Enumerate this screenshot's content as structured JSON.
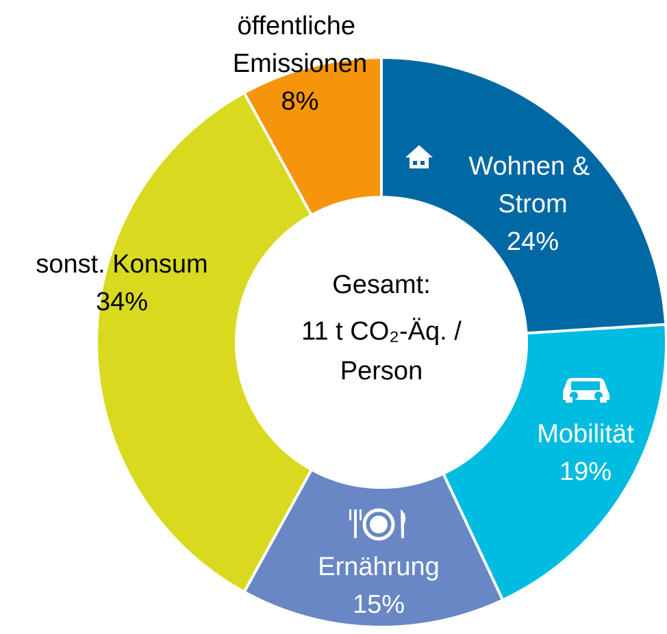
{
  "chart_data": {
    "type": "donut",
    "categories": [
      "Wohnen & Strom",
      "Mobilität",
      "Ernährung",
      "sonst. Konsum",
      "öffentliche Emissionen"
    ],
    "values": [
      24,
      19,
      15,
      34,
      8
    ],
    "value_labels": [
      "24%",
      "19%",
      "15%",
      "34%",
      "8%"
    ],
    "colors": [
      "#0068a2",
      "#00bce0",
      "#6887c4",
      "#d9d91f",
      "#f6950c"
    ],
    "center_text": [
      "Gesamt:",
      "11 t CO₂-Äq. /",
      "Person"
    ]
  }
}
